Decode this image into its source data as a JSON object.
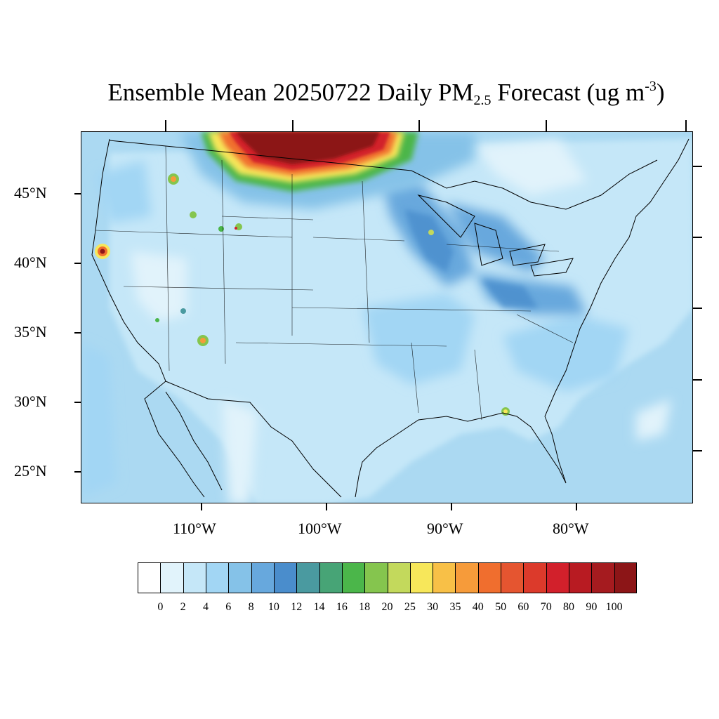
{
  "title": {
    "prefix": "Ensemble Mean 20250722 Daily PM",
    "sub": "2.5",
    "middle": " Forecast (ug m",
    "sup": "-3",
    "suffix": ")"
  },
  "map": {
    "latitude_labels": [
      "45°N",
      "40°N",
      "35°N",
      "30°N",
      "25°N"
    ],
    "longitude_labels": [
      "110°W",
      "100°W",
      "90°W",
      "80°W"
    ],
    "colors": {
      "ocean": "#abd9f2",
      "land_base": "#c5e7f8",
      "light": "#e1f3fb",
      "medium": "#8fcbee",
      "deep": "#6aa8dd",
      "green": "#4bb64a",
      "smoke_core": "#8c1517"
    },
    "smoke_plume": "northern-border-smoke",
    "fire_hotspots": [
      "northern-california",
      "idaho-panhandle",
      "central-idaho",
      "wyoming",
      "arizona",
      "alabama-georgia"
    ]
  },
  "colorbar": {
    "labels": [
      "0",
      "2",
      "4",
      "6",
      "8",
      "10",
      "12",
      "14",
      "16",
      "18",
      "20",
      "25",
      "30",
      "35",
      "40",
      "50",
      "60",
      "70",
      "80",
      "90",
      "100"
    ],
    "colors": [
      "#ffffff",
      "#e1f3fb",
      "#c5e7f8",
      "#a2d6f4",
      "#85c2e8",
      "#67a8dd",
      "#4a8dcc",
      "#4a9aa0",
      "#47a476",
      "#4bb64a",
      "#85c54e",
      "#c3d95c",
      "#f7e75a",
      "#f8c047",
      "#f69b3a",
      "#f06e2e",
      "#e55530",
      "#dc3a2b",
      "#d2202b",
      "#b81b22",
      "#a51b1f",
      "#8c1517"
    ]
  }
}
